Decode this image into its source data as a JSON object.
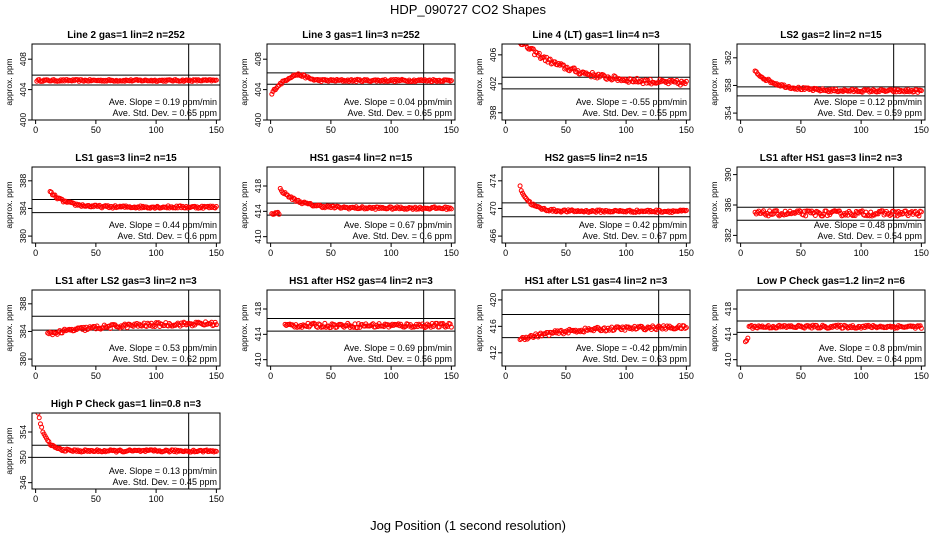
{
  "page": {
    "title": "HDP_090727  CO2 Shapes",
    "xlabel": "Jog Position (1 second resolution)"
  },
  "colors": {
    "points": "#ff0000",
    "axes": "#000000"
  },
  "chart_data": [
    {
      "type": "scatter",
      "title": "Line 2 gas=1 lin=2 n=252",
      "ylabel": "approx. ppm",
      "xlim": [
        -3,
        153
      ],
      "ylim": [
        400,
        410
      ],
      "xticks": [
        0,
        50,
        100,
        150
      ],
      "yticks": [
        400,
        404,
        408
      ],
      "hlines": [
        404.6,
        405.9
      ],
      "vline": 127,
      "slope_text": "Ave. Slope = 0.19 ppm/min",
      "std_text": "Ave. Std. Dev. = 0.65 ppm",
      "curve": {
        "start": 1,
        "end": 150,
        "kind": "flat",
        "base": 405.2,
        "noise": 0.12
      }
    },
    {
      "type": "scatter",
      "title": "Line 3 gas=1 lin=3 n=252",
      "ylabel": "approx. ppm",
      "xlim": [
        -3,
        153
      ],
      "ylim": [
        400,
        410
      ],
      "xticks": [
        0,
        50,
        100,
        150
      ],
      "yticks": [
        400,
        404,
        408
      ],
      "hlines": [
        404.7,
        406.2
      ],
      "vline": 127,
      "slope_text": "Ave. Slope = 0.04 ppm/min",
      "std_text": "Ave. Std. Dev. = 0.65 ppm",
      "curve": {
        "start": 1,
        "end": 150,
        "kind": "rise",
        "base": 405.2,
        "amp": -1.8,
        "tau": 6,
        "hump": 0.8,
        "hump_at": 22,
        "noise": 0.15
      }
    },
    {
      "type": "scatter",
      "title": "Line 4 (LT) gas=1 lin=4 n=3",
      "ylabel": "approx. ppm",
      "xlim": [
        -3,
        153
      ],
      "ylim": [
        397,
        407.5
      ],
      "xticks": [
        0,
        50,
        100,
        150
      ],
      "yticks": [
        398,
        402,
        406
      ],
      "hlines": [
        401.3,
        402.9
      ],
      "vline": 127,
      "slope_text": "Ave. Slope = -0.55 ppm/min",
      "std_text": "Ave. Std. Dev. = 0.55 ppm",
      "curve": {
        "start": 12,
        "end": 150,
        "kind": "decay",
        "base": 401.9,
        "amp": 6,
        "tau": 40,
        "noise": 0.35
      }
    },
    {
      "type": "scatter",
      "title": "LS2 gas=2 lin=2 n=15",
      "ylabel": "approx. ppm",
      "xlim": [
        -3,
        153
      ],
      "ylim": [
        353,
        364
      ],
      "xticks": [
        0,
        50,
        100,
        150
      ],
      "yticks": [
        354,
        358,
        362
      ],
      "hlines": [
        356.5,
        357.8
      ],
      "vline": 127,
      "slope_text": "Ave. Slope = 0.12 ppm/min",
      "std_text": "Ave. Std. Dev. = 0.59 ppm",
      "curve": {
        "start": 12,
        "end": 150,
        "kind": "decay",
        "base": 357.2,
        "amp": 2.8,
        "tau": 18,
        "noise": 0.2
      }
    },
    {
      "type": "scatter",
      "title": "LS1 gas=3 lin=2 n=15",
      "ylabel": "approx. ppm",
      "xlim": [
        -3,
        153
      ],
      "ylim": [
        379,
        390
      ],
      "xticks": [
        0,
        50,
        100,
        150
      ],
      "yticks": [
        380,
        384,
        388
      ],
      "hlines": [
        383.4,
        385.3
      ],
      "vline": 127,
      "slope_text": "Ave. Slope = 0.44 ppm/min",
      "std_text": "Ave. Std. Dev. = 0.6 ppm",
      "curve": {
        "start": 12,
        "end": 150,
        "kind": "decay",
        "base": 384.2,
        "amp": 2.2,
        "tau": 12,
        "noise": 0.18
      }
    },
    {
      "type": "scatter",
      "title": "HS1 gas=4 lin=2 n=15",
      "ylabel": "approx. ppm",
      "xlim": [
        -3,
        153
      ],
      "ylim": [
        409,
        421
      ],
      "xticks": [
        0,
        50,
        100,
        150
      ],
      "yticks": [
        410,
        414,
        418
      ],
      "hlines": [
        413.4,
        415.3
      ],
      "vline": 127,
      "slope_text": "Ave. Slope = 0.67 ppm/min",
      "std_text": "Ave. Std. Dev. = 0.6 ppm",
      "curve": {
        "start": 1,
        "end": 150,
        "kind": "dipdecay",
        "base": 414.5,
        "amp": 2,
        "tau": 15,
        "noise": 0.2
      }
    },
    {
      "type": "scatter",
      "title": "HS2 gas=5 lin=2 n=15",
      "ylabel": "approx. ppm",
      "xlim": [
        -3,
        153
      ],
      "ylim": [
        465,
        476
      ],
      "xticks": [
        0,
        50,
        100,
        150
      ],
      "yticks": [
        466,
        470,
        474
      ],
      "hlines": [
        468.8,
        470.8
      ],
      "vline": 127,
      "slope_text": "Ave. Slope = 0.42 ppm/min",
      "std_text": "Ave. Std. Dev. = 0.67 ppm",
      "curve": {
        "start": 12,
        "end": 150,
        "kind": "decay",
        "base": 469.6,
        "amp": 3.5,
        "tau": 8,
        "noise": 0.18
      }
    },
    {
      "type": "scatter",
      "title": "LS1 after HS1 gas=3 lin=2 n=3",
      "ylabel": "approx. ppm",
      "xlim": [
        -3,
        153
      ],
      "ylim": [
        381,
        391
      ],
      "xticks": [
        0,
        50,
        100,
        150
      ],
      "yticks": [
        382,
        386,
        390
      ],
      "hlines": [
        384,
        385.7
      ],
      "vline": 127,
      "slope_text": "Ave. Slope = 0.48 ppm/min",
      "std_text": "Ave. Std. Dev. = 0.54 ppm",
      "curve": {
        "start": 12,
        "end": 150,
        "kind": "flat",
        "base": 384.9,
        "noise": 0.35
      }
    },
    {
      "type": "scatter",
      "title": "LS1 after LS2 gas=3 lin=2 n=3",
      "ylabel": "approx. ppm",
      "xlim": [
        -3,
        153
      ],
      "ylim": [
        379,
        390
      ],
      "xticks": [
        0,
        50,
        100,
        150
      ],
      "yticks": [
        380,
        384,
        388
      ],
      "hlines": [
        384.2,
        386.2
      ],
      "vline": 127,
      "slope_text": "Ave. Slope = 0.53 ppm/min",
      "std_text": "Ave. Std. Dev. = 0.62 ppm",
      "curve": {
        "start": 10,
        "end": 150,
        "kind": "rise",
        "base": 385.2,
        "amp": -1.6,
        "tau": 45,
        "noise": 0.3
      }
    },
    {
      "type": "scatter",
      "title": "HS1 after HS2 gas=4 lin=2 n=3",
      "ylabel": "approx. ppm",
      "xlim": [
        -3,
        153
      ],
      "ylim": [
        409,
        421
      ],
      "xticks": [
        0,
        50,
        100,
        150
      ],
      "yticks": [
        410,
        414,
        418
      ],
      "hlines": [
        414.5,
        416.5
      ],
      "vline": 127,
      "slope_text": "Ave. Slope = 0.69 ppm/min",
      "std_text": "Ave. Std. Dev. = 0.56 ppm",
      "curve": {
        "start": 12,
        "end": 150,
        "kind": "flat",
        "base": 415.4,
        "noise": 0.35
      }
    },
    {
      "type": "scatter",
      "title": "HS1 after LS1 gas=4 lin=2 n=3",
      "ylabel": "approx. ppm",
      "xlim": [
        -3,
        153
      ],
      "ylim": [
        410,
        421.5
      ],
      "xticks": [
        0,
        50,
        100,
        150
      ],
      "yticks": [
        412,
        416,
        420
      ],
      "hlines": [
        414.3,
        417.8
      ],
      "vline": 127,
      "slope_text": "Ave. Slope = -0.42 ppm/min",
      "std_text": "Ave. Std. Dev. = 0.63 ppm",
      "curve": {
        "start": 12,
        "end": 150,
        "kind": "rise",
        "base": 415.9,
        "amp": -1.8,
        "tau": 40,
        "noise": 0.3
      }
    },
    {
      "type": "scatter",
      "title": "Low P Check gas=1.2 lin=2 n=6",
      "ylabel": "approx. ppm",
      "xlim": [
        -3,
        153
      ],
      "ylim": [
        409,
        421
      ],
      "xticks": [
        0,
        50,
        100,
        150
      ],
      "yticks": [
        410,
        414,
        418
      ],
      "hlines": [
        414.3,
        416.1
      ],
      "vline": 127,
      "slope_text": "Ave. Slope = 0.8 ppm/min",
      "std_text": "Ave. Std. Dev. = 0.64 ppm",
      "curve": {
        "start": 4,
        "end": 150,
        "kind": "dipflat",
        "base": 415.2,
        "noise": 0.25
      }
    },
    {
      "type": "scatter",
      "title": "High P Check gas=1 lin=0.8 n=3",
      "ylabel": "approx. ppm",
      "xlim": [
        -3,
        153
      ],
      "ylim": [
        345,
        357
      ],
      "xticks": [
        0,
        50,
        100,
        150
      ],
      "yticks": [
        346,
        350,
        354
      ],
      "hlines": [
        350,
        351.9
      ],
      "vline": 127,
      "slope_text": "Ave. Slope = 0.13 ppm/min",
      "std_text": "Ave. Std. Dev. = 0.45 ppm",
      "curve": {
        "start": 2,
        "end": 150,
        "kind": "decay",
        "base": 351,
        "amp": 6,
        "tau": 6,
        "noise": 0.18
      }
    }
  ]
}
